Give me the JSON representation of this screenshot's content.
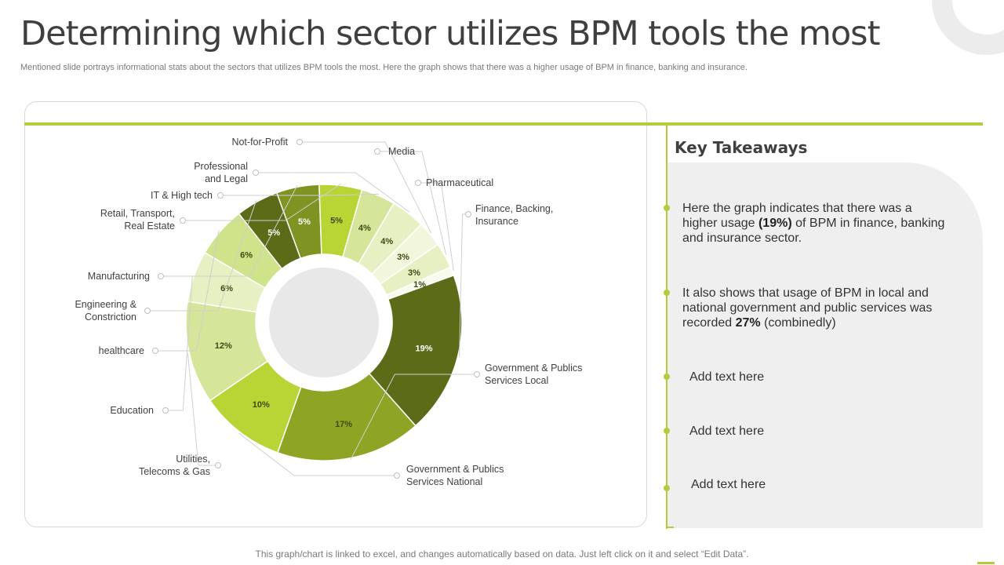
{
  "slide": {
    "title": "Determining which sector utilizes BPM tools the most",
    "subtitle": "Mentioned slide portrays informational stats about the sectors that utilizes BPM  tools the most. Here the graph shows that there was a higher usage of BPM  in finance, banking and insurance.",
    "footer": "This graph/chart is linked to excel, and changes automatically based on data. Just left click on it and select “Edit Data”."
  },
  "takeaways": {
    "title": "Key Takeaways",
    "items": [
      {
        "pre": "Here the graph indicates that there was a higher usage ",
        "bold": "(19%)",
        "post": " of BPM in finance, banking and insurance sector."
      },
      {
        "pre": "It also shows that usage of BPM in local and national government  and public services was recorded ",
        "bold": "27%",
        "post": " (combinedly)"
      },
      {
        "text": "Add text here"
      },
      {
        "text": "Add text here"
      },
      {
        "text": "Add text here"
      }
    ]
  },
  "chart_data": {
    "type": "pie",
    "variant": "donut",
    "title": "",
    "unit": "%",
    "categories": [
      "Finance, Backing,\nInsurance",
      "Government  & Publics\nServices Local",
      "Government  & Publics\nServices National",
      "Utilities,\nTelecoms & Gas",
      "Education",
      "healthcare",
      "Engineering &\nConstriction",
      "Manufacturing",
      "Retail, Transport,\nReal Estate",
      "IT & High tech",
      "Professional\nand Legal",
      "Not-for-Profit",
      "Media",
      "Pharmaceutical"
    ],
    "values": [
      19,
      17,
      10,
      12,
      6,
      6,
      5,
      5,
      5,
      4,
      4,
      3,
      3,
      1
    ],
    "data_labels": [
      "19%",
      "17%",
      "10%",
      "12%",
      "6%",
      "6%",
      "5%",
      "5%",
      "5%",
      "4%",
      "4%",
      "3%",
      "3%",
      "1%"
    ],
    "colors": [
      "#5b6b17",
      "#8ea424",
      "#b8d435",
      "#d5e69a",
      "#e7f0c3",
      "#cfe38a",
      "#5b6b17",
      "#7f9323",
      "#b8d435",
      "#d5e69a",
      "#e7f0c3",
      "#f1f6dd",
      "#e7f0c3",
      "#f7faed"
    ],
    "label_colors": [
      "#ffffff",
      "#3d4a0f",
      "#3d4a0f",
      "#3d4a0f",
      "#3d4a0f",
      "#3d4a0f",
      "#ffffff",
      "#ffffff",
      "#3d4a0f",
      "#3d4a0f",
      "#3d4a0f",
      "#3d4a0f",
      "#3d4a0f",
      "#3d4a0f"
    ],
    "legend": "none"
  }
}
